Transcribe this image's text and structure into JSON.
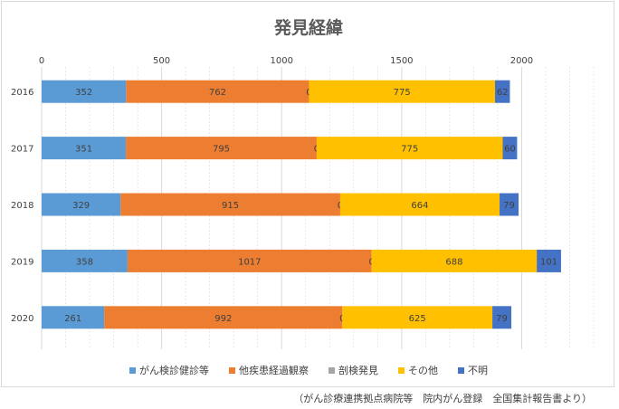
{
  "source_note": "（がん診療連携拠点病院等　院内がん登録　全国集計報告書より）",
  "colors": {
    "series": [
      "#5b9bd5",
      "#ed7d31",
      "#a5a5a5",
      "#ffc000",
      "#4472c4"
    ],
    "grid": "#d9d9d9",
    "text": "#404040",
    "title": "#595959"
  },
  "chart_data": {
    "type": "bar",
    "orientation": "horizontal",
    "stacked": true,
    "title": "発見経緯",
    "xlabel": "",
    "ylabel": "",
    "xlim": [
      0,
      2300
    ],
    "xticks": [
      0,
      500,
      1000,
      1500,
      2000
    ],
    "grid": true,
    "legend_position": "bottom",
    "categories": [
      "2016",
      "2017",
      "2018",
      "2019",
      "2020"
    ],
    "series": [
      {
        "name": "がん検診健診等",
        "values": [
          352,
          351,
          329,
          358,
          261
        ]
      },
      {
        "name": "他疾患経過観察",
        "values": [
          762,
          795,
          915,
          1017,
          992
        ]
      },
      {
        "name": "剖検発見",
        "values": [
          0,
          0,
          0,
          0,
          0
        ]
      },
      {
        "name": "その他",
        "values": [
          775,
          775,
          664,
          688,
          625
        ]
      },
      {
        "name": "不明",
        "values": [
          62,
          60,
          79,
          101,
          79
        ]
      }
    ]
  }
}
